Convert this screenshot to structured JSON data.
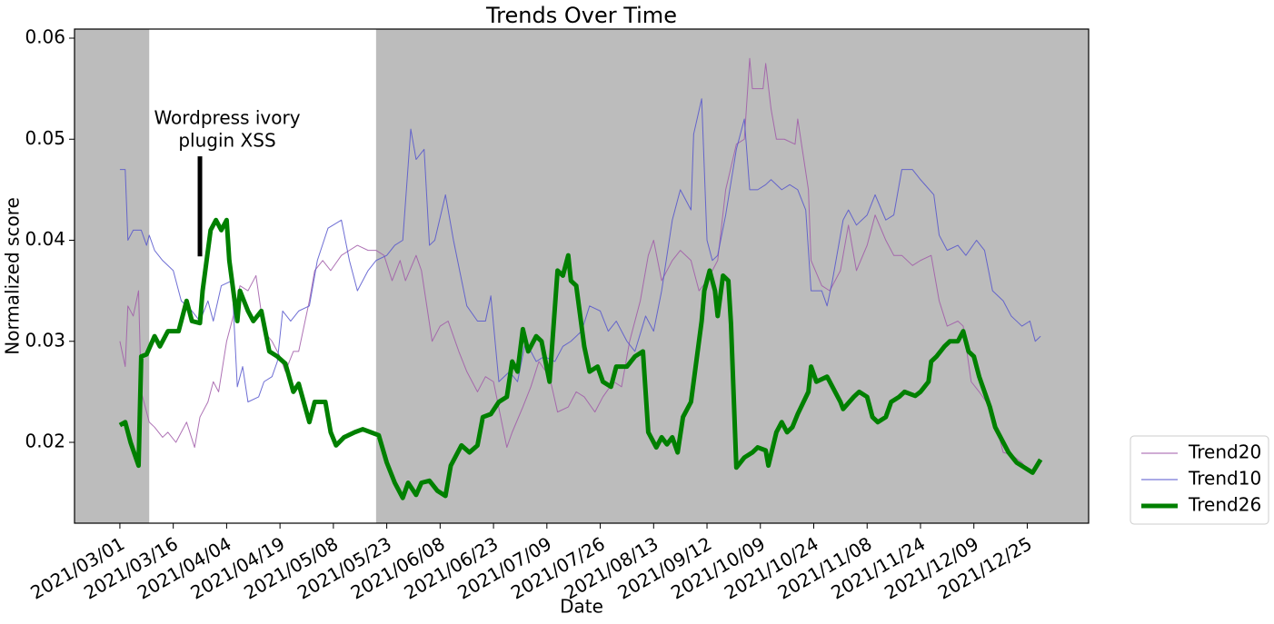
{
  "chart_data": {
    "type": "line",
    "title": "Trends Over Time",
    "xlabel": "Date",
    "ylabel": "Normalized score",
    "xlim": [
      -17,
      363
    ],
    "ylim": [
      0.012,
      0.0609
    ],
    "xticks": [
      {
        "value": 0,
        "label": "2021/03/01"
      },
      {
        "value": 20,
        "label": "2021/03/16"
      },
      {
        "value": 40,
        "label": "2021/04/04"
      },
      {
        "value": 60,
        "label": "2021/04/19"
      },
      {
        "value": 80,
        "label": "2021/05/08"
      },
      {
        "value": 100,
        "label": "2021/05/23"
      },
      {
        "value": 120,
        "label": "2021/06/08"
      },
      {
        "value": 140,
        "label": "2021/06/23"
      },
      {
        "value": 160,
        "label": "2021/07/09"
      },
      {
        "value": 180,
        "label": "2021/07/26"
      },
      {
        "value": 200,
        "label": "2021/08/13"
      },
      {
        "value": 220,
        "label": "2021/09/12"
      },
      {
        "value": 240,
        "label": "2021/10/09"
      },
      {
        "value": 260,
        "label": "2021/10/24"
      },
      {
        "value": 280,
        "label": "2021/11/08"
      },
      {
        "value": 300,
        "label": "2021/11/24"
      },
      {
        "value": 320,
        "label": "2021/12/09"
      },
      {
        "value": 340,
        "label": "2021/12/25"
      }
    ],
    "yticks": [
      0.02,
      0.03,
      0.04,
      0.05,
      0.06
    ],
    "background": "#bcbcbc",
    "highlight_span": [
      11,
      96
    ],
    "highlight_color": "#ffffff",
    "annotation": {
      "lines": [
        "Wordpress ivory",
        "plugin XSS"
      ],
      "x": 30,
      "y_range": [
        0.0384,
        0.0483
      ]
    },
    "legend": "outside lower right",
    "series": [
      {
        "name": "Trend20",
        "color": "#a05aa8",
        "width": 1,
        "x": [
          0,
          2,
          3,
          5,
          7,
          8,
          11,
          13,
          16,
          18,
          21,
          25,
          28,
          30,
          33,
          35,
          37,
          40,
          43,
          45,
          48,
          51,
          54,
          57,
          60,
          62,
          65,
          67,
          71,
          73,
          76,
          79,
          83,
          86,
          89,
          93,
          96,
          99,
          102,
          105,
          107,
          111,
          113,
          117,
          120,
          123,
          127,
          130,
          134,
          137,
          140,
          145,
          147,
          151,
          154,
          157,
          161,
          164,
          168,
          171,
          174,
          178,
          181,
          185,
          188,
          191,
          195,
          198,
          200,
          203,
          207,
          210,
          214,
          217,
          220,
          224,
          227,
          231,
          234,
          236,
          237,
          241,
          242,
          244,
          246,
          249,
          253,
          254,
          258,
          259,
          263,
          266,
          270,
          273,
          276,
          280,
          283,
          287,
          290,
          293,
          297,
          300,
          304,
          307,
          310,
          314,
          316,
          319,
          322,
          326,
          329,
          331,
          334,
          338,
          341,
          345
        ],
        "values": [
          0.03,
          0.0275,
          0.0335,
          0.0325,
          0.035,
          0.025,
          0.022,
          0.0215,
          0.0205,
          0.021,
          0.02,
          0.022,
          0.0195,
          0.0225,
          0.024,
          0.026,
          0.025,
          0.03,
          0.033,
          0.0355,
          0.035,
          0.0365,
          0.031,
          0.03,
          0.0285,
          0.027,
          0.029,
          0.029,
          0.034,
          0.037,
          0.038,
          0.037,
          0.0385,
          0.039,
          0.0395,
          0.039,
          0.039,
          0.0385,
          0.036,
          0.038,
          0.036,
          0.0385,
          0.037,
          0.03,
          0.0315,
          0.032,
          0.029,
          0.027,
          0.025,
          0.0265,
          0.026,
          0.0195,
          0.021,
          0.0235,
          0.0255,
          0.028,
          0.0265,
          0.023,
          0.0235,
          0.025,
          0.0245,
          0.023,
          0.0245,
          0.026,
          0.0255,
          0.03,
          0.034,
          0.0385,
          0.04,
          0.036,
          0.038,
          0.039,
          0.038,
          0.035,
          0.036,
          0.038,
          0.045,
          0.0495,
          0.05,
          0.058,
          0.055,
          0.055,
          0.0575,
          0.053,
          0.05,
          0.05,
          0.0495,
          0.052,
          0.045,
          0.038,
          0.0355,
          0.035,
          0.037,
          0.0415,
          0.037,
          0.0395,
          0.0425,
          0.04,
          0.0385,
          0.0385,
          0.0375,
          0.038,
          0.0385,
          0.034,
          0.0315,
          0.032,
          0.0315,
          0.026,
          0.025,
          0.0235,
          0.021,
          0.019,
          0.0188,
          0.018,
          0.017,
          0.018
        ]
      },
      {
        "name": "Trend10",
        "color": "#5555cc",
        "width": 1,
        "x": [
          0,
          2,
          3,
          5,
          8,
          10,
          11,
          13,
          16,
          20,
          23,
          27,
          30,
          33,
          35,
          38,
          42,
          44,
          46,
          48,
          52,
          54,
          57,
          59,
          61,
          64,
          67,
          71,
          74,
          78,
          83,
          86,
          89,
          93,
          96,
          100,
          103,
          106,
          109,
          111,
          114,
          116,
          118,
          122,
          125,
          130,
          134,
          137,
          139,
          142,
          146,
          149,
          152,
          156,
          159,
          163,
          166,
          169,
          173,
          176,
          180,
          183,
          186,
          190,
          193,
          197,
          200,
          203,
          207,
          210,
          214,
          215,
          218,
          220,
          222,
          224,
          227,
          231,
          234,
          236,
          239,
          242,
          244,
          248,
          251,
          254,
          257,
          259,
          263,
          265,
          267,
          271,
          273,
          276,
          280,
          283,
          287,
          290,
          293,
          297,
          300,
          305,
          307,
          310,
          314,
          317,
          321,
          324,
          327,
          331,
          334,
          338,
          341,
          343,
          345
        ],
        "values": [
          0.047,
          0.047,
          0.04,
          0.041,
          0.041,
          0.0395,
          0.0405,
          0.039,
          0.038,
          0.037,
          0.034,
          0.033,
          0.032,
          0.034,
          0.032,
          0.0355,
          0.036,
          0.0255,
          0.0275,
          0.024,
          0.0245,
          0.026,
          0.0265,
          0.028,
          0.033,
          0.032,
          0.033,
          0.0335,
          0.038,
          0.0412,
          0.042,
          0.038,
          0.035,
          0.037,
          0.038,
          0.0385,
          0.0395,
          0.04,
          0.051,
          0.048,
          0.049,
          0.0395,
          0.04,
          0.0445,
          0.04,
          0.0335,
          0.032,
          0.032,
          0.0345,
          0.026,
          0.027,
          0.026,
          0.03,
          0.028,
          0.0285,
          0.028,
          0.0295,
          0.03,
          0.031,
          0.0335,
          0.033,
          0.031,
          0.032,
          0.03,
          0.029,
          0.0325,
          0.031,
          0.035,
          0.042,
          0.045,
          0.043,
          0.0505,
          0.054,
          0.04,
          0.038,
          0.0385,
          0.0425,
          0.049,
          0.052,
          0.045,
          0.045,
          0.0455,
          0.046,
          0.045,
          0.0455,
          0.045,
          0.043,
          0.035,
          0.035,
          0.0335,
          0.036,
          0.042,
          0.043,
          0.0415,
          0.0425,
          0.0445,
          0.042,
          0.0425,
          0.047,
          0.047,
          0.046,
          0.0445,
          0.0405,
          0.039,
          0.0395,
          0.0385,
          0.04,
          0.039,
          0.035,
          0.034,
          0.0325,
          0.0315,
          0.032,
          0.03,
          0.0305
        ]
      },
      {
        "name": "Trend26",
        "color": "#008000",
        "width": 5,
        "x": [
          0,
          2,
          4,
          7,
          8,
          10,
          13,
          15,
          18,
          22,
          25,
          27,
          30,
          31,
          34,
          36,
          38,
          40,
          41,
          44,
          45,
          48,
          50,
          53,
          56,
          59,
          62,
          65,
          67,
          71,
          73,
          77,
          79,
          81,
          84,
          88,
          91,
          94,
          97,
          100,
          103,
          106,
          108,
          111,
          113,
          116,
          119,
          122,
          124,
          128,
          131,
          134,
          136,
          139,
          142,
          145,
          147,
          149,
          151,
          153,
          156,
          158,
          161,
          164,
          166,
          168,
          169,
          171,
          174,
          176,
          179,
          181,
          184,
          186,
          190,
          193,
          196,
          198,
          201,
          203,
          205,
          207,
          209,
          211,
          214,
          216,
          218,
          219,
          221,
          223,
          224,
          226,
          228,
          229,
          231,
          234,
          237,
          239,
          242,
          243,
          246,
          248,
          250,
          252,
          254,
          258,
          259,
          261,
          265,
          267,
          270,
          271,
          275,
          277,
          280,
          282,
          284,
          287,
          289,
          292,
          294,
          298,
          300,
          303,
          304,
          306,
          309,
          311,
          314,
          316,
          318,
          320,
          322,
          324,
          326,
          328,
          330,
          333,
          336,
          339,
          342,
          345
        ],
        "values": [
          0.0217,
          0.022,
          0.02,
          0.0177,
          0.0285,
          0.0287,
          0.0305,
          0.0295,
          0.031,
          0.031,
          0.034,
          0.032,
          0.0318,
          0.035,
          0.041,
          0.042,
          0.041,
          0.042,
          0.038,
          0.032,
          0.035,
          0.033,
          0.032,
          0.033,
          0.029,
          0.0285,
          0.0278,
          0.025,
          0.0258,
          0.022,
          0.024,
          0.024,
          0.021,
          0.0197,
          0.0205,
          0.021,
          0.0213,
          0.021,
          0.0207,
          0.018,
          0.016,
          0.0145,
          0.016,
          0.0148,
          0.016,
          0.0162,
          0.0152,
          0.0147,
          0.0177,
          0.0197,
          0.019,
          0.0197,
          0.0225,
          0.0228,
          0.024,
          0.0245,
          0.028,
          0.027,
          0.0312,
          0.029,
          0.0305,
          0.03,
          0.026,
          0.037,
          0.0365,
          0.0385,
          0.036,
          0.0355,
          0.0295,
          0.027,
          0.0275,
          0.026,
          0.0255,
          0.0275,
          0.0275,
          0.0285,
          0.029,
          0.021,
          0.0195,
          0.0205,
          0.0198,
          0.0205,
          0.019,
          0.0225,
          0.024,
          0.028,
          0.032,
          0.035,
          0.037,
          0.035,
          0.0325,
          0.0365,
          0.036,
          0.0317,
          0.0175,
          0.0185,
          0.019,
          0.0195,
          0.0192,
          0.0177,
          0.021,
          0.022,
          0.021,
          0.0215,
          0.0228,
          0.025,
          0.0275,
          0.026,
          0.0265,
          0.0255,
          0.024,
          0.0233,
          0.0245,
          0.025,
          0.0245,
          0.0225,
          0.022,
          0.0225,
          0.024,
          0.0245,
          0.025,
          0.0246,
          0.025,
          0.026,
          0.028,
          0.0285,
          0.0295,
          0.03,
          0.03,
          0.031,
          0.029,
          0.0285,
          0.0265,
          0.025,
          0.0235,
          0.0215,
          0.0205,
          0.019,
          0.018,
          0.0175,
          0.017,
          0.0183
        ]
      }
    ]
  }
}
